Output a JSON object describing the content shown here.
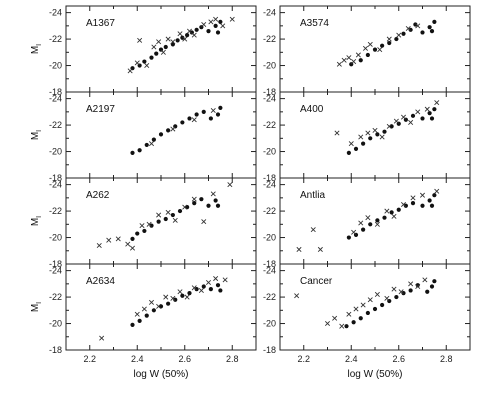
{
  "figure": {
    "xlabel": "log W (50%)",
    "ylabel_main": "M",
    "ylabel_sub": "I"
  },
  "chart_data": {
    "type": "scatter",
    "xlim": [
      2.1,
      2.9
    ],
    "ylim": [
      -18,
      -24.5
    ],
    "y_inverted": true,
    "x_ticks": [
      2.2,
      2.4,
      2.6,
      2.8
    ],
    "y_ticks": [
      -18,
      -20,
      -22,
      -24
    ],
    "grid": false,
    "panels": [
      {
        "name": "A1367",
        "series": [
          {
            "marker": "dot",
            "points": [
              [
                2.38,
                -19.8
              ],
              [
                2.41,
                -20.0
              ],
              [
                2.43,
                -20.3
              ],
              [
                2.46,
                -20.6
              ],
              [
                2.48,
                -20.9
              ],
              [
                2.5,
                -21.2
              ],
              [
                2.52,
                -21.4
              ],
              [
                2.55,
                -21.6
              ],
              [
                2.57,
                -21.9
              ],
              [
                2.59,
                -22.1
              ],
              [
                2.61,
                -22.3
              ],
              [
                2.63,
                -22.5
              ],
              [
                2.65,
                -22.7
              ],
              [
                2.67,
                -22.9
              ],
              [
                2.7,
                -22.6
              ],
              [
                2.73,
                -23.0
              ],
              [
                2.74,
                -22.5
              ],
              [
                2.75,
                -23.3
              ]
            ]
          },
          {
            "marker": "cross",
            "points": [
              [
                2.37,
                -19.6
              ],
              [
                2.4,
                -20.2
              ],
              [
                2.41,
                -21.9
              ],
              [
                2.44,
                -20.0
              ],
              [
                2.47,
                -21.4
              ],
              [
                2.49,
                -21.8
              ],
              [
                2.51,
                -21.0
              ],
              [
                2.53,
                -22.0
              ],
              [
                2.55,
                -21.8
              ],
              [
                2.58,
                -22.4
              ],
              [
                2.6,
                -22.0
              ],
              [
                2.62,
                -22.6
              ],
              [
                2.64,
                -22.3
              ],
              [
                2.68,
                -23.1
              ],
              [
                2.71,
                -23.3
              ],
              [
                2.73,
                -23.5
              ],
              [
                2.76,
                -23.0
              ],
              [
                2.8,
                -23.5
              ]
            ]
          }
        ]
      },
      {
        "name": "A3574",
        "series": [
          {
            "marker": "dot",
            "points": [
              [
                2.4,
                -20.1
              ],
              [
                2.44,
                -20.4
              ],
              [
                2.47,
                -20.8
              ],
              [
                2.5,
                -21.2
              ],
              [
                2.53,
                -21.5
              ],
              [
                2.56,
                -21.7
              ],
              [
                2.59,
                -22.0
              ],
              [
                2.62,
                -22.4
              ],
              [
                2.65,
                -22.7
              ],
              [
                2.67,
                -23.1
              ],
              [
                2.7,
                -22.5
              ],
              [
                2.73,
                -22.9
              ],
              [
                2.74,
                -22.6
              ],
              [
                2.75,
                -23.3
              ]
            ]
          },
          {
            "marker": "cross",
            "points": [
              [
                2.35,
                -20.1
              ],
              [
                2.37,
                -20.4
              ],
              [
                2.39,
                -20.6
              ],
              [
                2.41,
                -20.3
              ],
              [
                2.43,
                -20.8
              ],
              [
                2.46,
                -21.3
              ],
              [
                2.48,
                -21.6
              ],
              [
                2.52,
                -21.2
              ],
              [
                2.56,
                -22.0
              ],
              [
                2.6,
                -22.3
              ],
              [
                2.64,
                -22.8
              ],
              [
                2.68,
                -23.0
              ]
            ]
          }
        ]
      },
      {
        "name": "A2197",
        "series": [
          {
            "marker": "dot",
            "points": [
              [
                2.38,
                -19.9
              ],
              [
                2.41,
                -20.1
              ],
              [
                2.44,
                -20.5
              ],
              [
                2.47,
                -20.9
              ],
              [
                2.5,
                -21.3
              ],
              [
                2.53,
                -21.6
              ],
              [
                2.56,
                -21.9
              ],
              [
                2.59,
                -22.2
              ],
              [
                2.62,
                -22.5
              ],
              [
                2.65,
                -22.8
              ],
              [
                2.68,
                -23.0
              ],
              [
                2.71,
                -22.5
              ],
              [
                2.74,
                -22.8
              ],
              [
                2.75,
                -23.3
              ]
            ]
          },
          {
            "marker": "cross",
            "points": [
              [
                2.46,
                -20.6
              ],
              [
                2.55,
                -21.7
              ],
              [
                2.64,
                -22.4
              ],
              [
                2.72,
                -23.1
              ]
            ]
          }
        ]
      },
      {
        "name": "A400",
        "series": [
          {
            "marker": "dot",
            "points": [
              [
                2.39,
                -19.9
              ],
              [
                2.42,
                -20.2
              ],
              [
                2.45,
                -20.6
              ],
              [
                2.48,
                -21.0
              ],
              [
                2.51,
                -21.3
              ],
              [
                2.54,
                -21.5
              ],
              [
                2.57,
                -21.9
              ],
              [
                2.6,
                -22.1
              ],
              [
                2.63,
                -22.4
              ],
              [
                2.66,
                -22.7
              ],
              [
                2.7,
                -22.5
              ],
              [
                2.73,
                -22.9
              ],
              [
                2.74,
                -22.5
              ],
              [
                2.75,
                -23.2
              ]
            ]
          },
          {
            "marker": "cross",
            "points": [
              [
                2.34,
                -21.4
              ],
              [
                2.4,
                -20.6
              ],
              [
                2.44,
                -21.1
              ],
              [
                2.47,
                -21.4
              ],
              [
                2.5,
                -21.6
              ],
              [
                2.53,
                -21.1
              ],
              [
                2.56,
                -21.9
              ],
              [
                2.59,
                -22.3
              ],
              [
                2.62,
                -22.6
              ],
              [
                2.65,
                -22.2
              ],
              [
                2.68,
                -23.0
              ],
              [
                2.72,
                -23.2
              ],
              [
                2.76,
                -23.7
              ]
            ]
          }
        ]
      },
      {
        "name": "A262",
        "series": [
          {
            "marker": "dot",
            "points": [
              [
                2.38,
                -19.9
              ],
              [
                2.4,
                -20.3
              ],
              [
                2.43,
                -20.5
              ],
              [
                2.46,
                -20.9
              ],
              [
                2.49,
                -21.2
              ],
              [
                2.52,
                -21.4
              ],
              [
                2.55,
                -21.7
              ],
              [
                2.58,
                -22.0
              ],
              [
                2.61,
                -22.3
              ],
              [
                2.64,
                -22.6
              ],
              [
                2.67,
                -22.9
              ],
              [
                2.7,
                -22.4
              ],
              [
                2.73,
                -22.8
              ],
              [
                2.74,
                -22.4
              ]
            ]
          },
          {
            "marker": "cross",
            "points": [
              [
                2.24,
                -19.4
              ],
              [
                2.28,
                -19.8
              ],
              [
                2.32,
                -19.9
              ],
              [
                2.36,
                -19.5
              ],
              [
                2.38,
                -19.2
              ],
              [
                2.42,
                -20.9
              ],
              [
                2.45,
                -21.0
              ],
              [
                2.49,
                -21.7
              ],
              [
                2.53,
                -21.9
              ],
              [
                2.56,
                -21.3
              ],
              [
                2.6,
                -22.3
              ],
              [
                2.64,
                -22.9
              ],
              [
                2.68,
                -21.2
              ],
              [
                2.72,
                -23.3
              ],
              [
                2.79,
                -24.0
              ]
            ]
          }
        ]
      },
      {
        "name": "Antlia",
        "series": [
          {
            "marker": "dot",
            "points": [
              [
                2.39,
                -20.0
              ],
              [
                2.42,
                -20.2
              ],
              [
                2.45,
                -20.6
              ],
              [
                2.48,
                -21.0
              ],
              [
                2.51,
                -21.3
              ],
              [
                2.54,
                -21.5
              ],
              [
                2.57,
                -21.9
              ],
              [
                2.6,
                -22.1
              ],
              [
                2.63,
                -22.4
              ],
              [
                2.66,
                -22.6
              ],
              [
                2.7,
                -22.4
              ],
              [
                2.73,
                -22.8
              ],
              [
                2.74,
                -22.4
              ],
              [
                2.75,
                -23.2
              ]
            ]
          },
          {
            "marker": "cross",
            "points": [
              [
                2.18,
                -19.1
              ],
              [
                2.24,
                -20.6
              ],
              [
                2.27,
                -19.1
              ],
              [
                2.41,
                -20.4
              ],
              [
                2.44,
                -21.1
              ],
              [
                2.47,
                -21.5
              ],
              [
                2.51,
                -21.0
              ],
              [
                2.55,
                -22.0
              ],
              [
                2.58,
                -21.6
              ],
              [
                2.62,
                -22.5
              ],
              [
                2.66,
                -23.0
              ],
              [
                2.7,
                -23.2
              ],
              [
                2.76,
                -23.5
              ]
            ]
          }
        ]
      },
      {
        "name": "A2634",
        "series": [
          {
            "marker": "dot",
            "points": [
              [
                2.38,
                -19.9
              ],
              [
                2.41,
                -20.2
              ],
              [
                2.44,
                -20.6
              ],
              [
                2.47,
                -21.0
              ],
              [
                2.5,
                -21.3
              ],
              [
                2.53,
                -21.5
              ],
              [
                2.56,
                -21.8
              ],
              [
                2.59,
                -22.1
              ],
              [
                2.62,
                -22.3
              ],
              [
                2.65,
                -22.6
              ],
              [
                2.68,
                -22.8
              ],
              [
                2.71,
                -22.6
              ],
              [
                2.74,
                -22.9
              ],
              [
                2.75,
                -22.5
              ]
            ]
          },
          {
            "marker": "cross",
            "points": [
              [
                2.25,
                -18.9
              ],
              [
                2.4,
                -20.7
              ],
              [
                2.43,
                -21.1
              ],
              [
                2.46,
                -21.6
              ],
              [
                2.49,
                -21.3
              ],
              [
                2.52,
                -22.0
              ],
              [
                2.55,
                -21.9
              ],
              [
                2.58,
                -22.4
              ],
              [
                2.61,
                -22.0
              ],
              [
                2.64,
                -22.7
              ],
              [
                2.67,
                -22.5
              ],
              [
                2.7,
                -23.1
              ],
              [
                2.73,
                -23.4
              ],
              [
                2.77,
                -23.3
              ]
            ]
          }
        ]
      },
      {
        "name": "Cancer",
        "series": [
          {
            "marker": "dot",
            "points": [
              [
                2.38,
                -19.8
              ],
              [
                2.41,
                -20.1
              ],
              [
                2.44,
                -20.4
              ],
              [
                2.47,
                -20.8
              ],
              [
                2.5,
                -21.1
              ],
              [
                2.53,
                -21.4
              ],
              [
                2.56,
                -21.7
              ],
              [
                2.59,
                -22.0
              ],
              [
                2.62,
                -22.3
              ],
              [
                2.65,
                -22.5
              ],
              [
                2.68,
                -22.9
              ],
              [
                2.72,
                -22.4
              ],
              [
                2.74,
                -22.8
              ],
              [
                2.75,
                -23.2
              ]
            ]
          },
          {
            "marker": "cross",
            "points": [
              [
                2.17,
                -22.1
              ],
              [
                2.3,
                -20.0
              ],
              [
                2.33,
                -20.4
              ],
              [
                2.36,
                -19.8
              ],
              [
                2.39,
                -20.7
              ],
              [
                2.42,
                -21.1
              ],
              [
                2.45,
                -21.4
              ],
              [
                2.48,
                -21.8
              ],
              [
                2.51,
                -22.2
              ],
              [
                2.55,
                -21.9
              ],
              [
                2.58,
                -22.6
              ],
              [
                2.61,
                -22.4
              ],
              [
                2.65,
                -23.0
              ],
              [
                2.68,
                -22.8
              ],
              [
                2.71,
                -23.3
              ]
            ]
          }
        ]
      }
    ]
  }
}
